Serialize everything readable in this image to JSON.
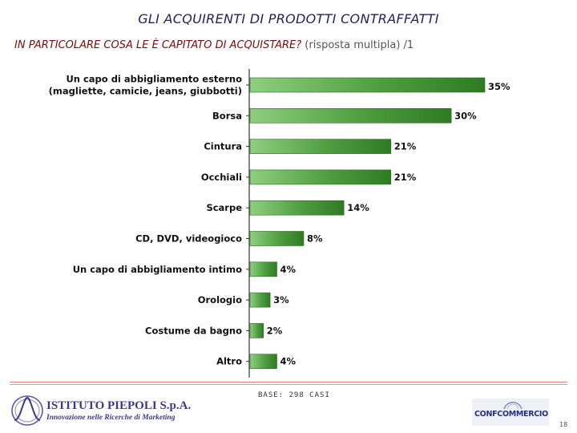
{
  "header": {
    "title": "GLI ACQUIRENTI DI PRODOTTI CONTRAFFATTI",
    "subtitle_question": "IN PARTICOLARE COSA LE È CAPITATO DI ACQUISTARE?",
    "subtitle_note": "(risposta multipla) /1"
  },
  "chart_data": {
    "type": "bar",
    "orientation": "horizontal",
    "categories": [
      [
        "Un capo di abbigliamento esterno",
        "(magliette, camicie, jeans, giubbotti)"
      ],
      [
        "Borsa"
      ],
      [
        "Cintura"
      ],
      [
        "Occhiali"
      ],
      [
        "Scarpe"
      ],
      [
        "CD, DVD, videogioco"
      ],
      [
        "Un capo di abbigliamento intimo"
      ],
      [
        "Orologio"
      ],
      [
        "Costume da bagno"
      ],
      [
        "Altro"
      ]
    ],
    "values": [
      35,
      30,
      21,
      21,
      14,
      8,
      4,
      3,
      2,
      4
    ],
    "value_labels": [
      "35%",
      "30%",
      "21%",
      "21%",
      "14%",
      "8%",
      "4%",
      "3%",
      "2%",
      "4%"
    ],
    "unit": "%",
    "xlim": [
      0,
      35
    ],
    "grid": false,
    "legend": "none",
    "bar_color": "#4a9a3a"
  },
  "footer": {
    "base_note": "BASE: 298 CASI",
    "logo_left_name": "ISTITUTO PIEPOLI S.p.A.",
    "logo_left_tagline": "Innovazione nelle Ricerche di Marketing",
    "logo_right_name": "CONFCOMMERCIO",
    "page_number": "18"
  }
}
